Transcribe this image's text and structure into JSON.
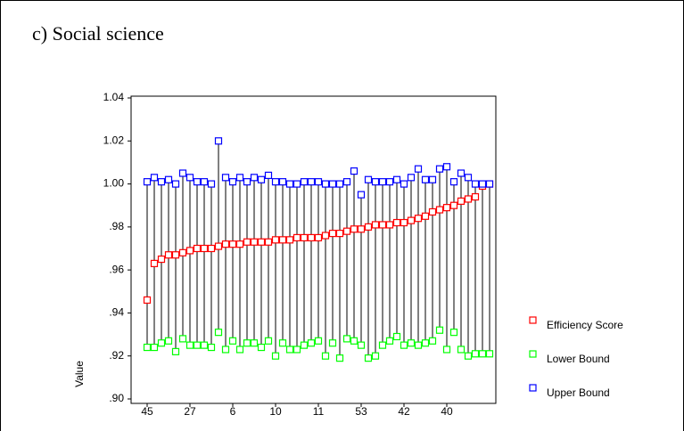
{
  "chart_data": {
    "type": "highlow",
    "title": "c) Social science",
    "y_label": "Value",
    "categories": [
      "45",
      null,
      null,
      null,
      null,
      null,
      "27",
      null,
      null,
      null,
      null,
      null,
      "6",
      null,
      null,
      null,
      null,
      null,
      "10",
      null,
      null,
      null,
      null,
      null,
      "11",
      null,
      null,
      null,
      null,
      null,
      "53",
      null,
      null,
      null,
      null,
      null,
      "42",
      null,
      null,
      null,
      null,
      null,
      "40",
      null,
      null,
      null,
      null,
      null,
      null
    ],
    "series": [
      {
        "name": "Efficiency Score",
        "color": "#ff0000",
        "values": [
          0.946,
          0.963,
          0.965,
          0.967,
          0.967,
          0.968,
          0.969,
          0.97,
          0.97,
          0.97,
          0.971,
          0.972,
          0.972,
          0.972,
          0.973,
          0.973,
          0.973,
          0.973,
          0.974,
          0.974,
          0.974,
          0.975,
          0.975,
          0.975,
          0.975,
          0.976,
          0.977,
          0.977,
          0.978,
          0.979,
          0.979,
          0.98,
          0.981,
          0.981,
          0.981,
          0.982,
          0.982,
          0.983,
          0.984,
          0.985,
          0.987,
          0.988,
          0.989,
          0.99,
          0.992,
          0.993,
          0.994,
          0.999,
          1.0
        ]
      },
      {
        "name": "Lower Bound",
        "color": "#00ff00",
        "values": [
          0.924,
          0.924,
          0.926,
          0.927,
          0.922,
          0.928,
          0.925,
          0.925,
          0.925,
          0.924,
          0.931,
          0.923,
          0.927,
          0.923,
          0.926,
          0.926,
          0.924,
          0.927,
          0.92,
          0.926,
          0.923,
          0.923,
          0.925,
          0.926,
          0.927,
          0.92,
          0.926,
          0.919,
          0.928,
          0.927,
          0.925,
          0.919,
          0.92,
          0.925,
          0.927,
          0.929,
          0.925,
          0.926,
          0.925,
          0.926,
          0.927,
          0.932,
          0.923,
          0.931,
          0.923,
          0.92,
          0.921,
          0.921,
          0.921
        ]
      },
      {
        "name": "Upper Bound",
        "color": "#0000ff",
        "values": [
          1.001,
          1.003,
          1.001,
          1.002,
          1.0,
          1.005,
          1.003,
          1.001,
          1.001,
          1.0,
          1.02,
          1.003,
          1.001,
          1.003,
          1.001,
          1.003,
          1.002,
          1.004,
          1.001,
          1.001,
          1.0,
          1.0,
          1.001,
          1.001,
          1.001,
          1.0,
          1.0,
          1.0,
          1.001,
          1.006,
          0.995,
          1.002,
          1.001,
          1.001,
          1.001,
          1.002,
          1.0,
          1.003,
          1.007,
          1.002,
          1.002,
          1.007,
          1.008,
          1.001,
          1.005,
          1.003,
          1.0,
          1.0,
          1.0
        ]
      }
    ],
    "ylim": [
      0.9,
      1.04
    ],
    "yticks": [
      {
        "value": 0.9,
        "label": ".90"
      },
      {
        "value": 0.92,
        "label": ".92"
      },
      {
        "value": 0.94,
        "label": ".94"
      },
      {
        "value": 0.96,
        "label": ".96"
      },
      {
        "value": 0.98,
        "label": ".98"
      },
      {
        "value": 1.0,
        "label": "1.00"
      },
      1.02,
      1.04
    ]
  }
}
